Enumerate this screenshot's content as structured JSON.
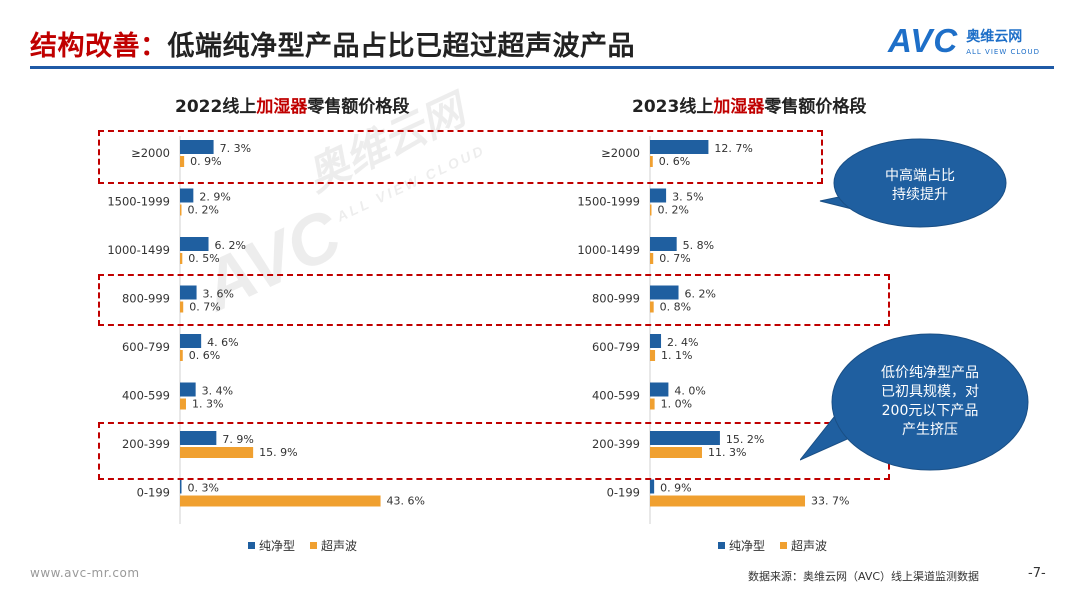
{
  "header": {
    "title_prefix": "结构改善：",
    "title_rest": "低端纯净型产品占比已超过超声波产品",
    "logo_mark": "AVC",
    "logo_cn": "奥维云网",
    "logo_en": "ALL VIEW CLOUD"
  },
  "colors": {
    "pure": "#1f5fa0",
    "ultra": "#f0a030",
    "accent": "#c00000",
    "bubble": "#1f5fa0"
  },
  "chart_data": [
    {
      "type": "bar",
      "orientation": "horizontal",
      "title_pre": "2022线上",
      "title_hl": "加湿器",
      "title_post": "零售额价格段",
      "categories": [
        "≥2000",
        "1500-1999",
        "1000-1499",
        "800-999",
        "600-799",
        "400-599",
        "200-399",
        "0-199"
      ],
      "series": [
        {
          "name": "纯净型",
          "values": [
            7.3,
            2.9,
            6.2,
            3.6,
            4.6,
            3.4,
            7.9,
            0.3
          ],
          "labels": [
            "7. 3%",
            "2. 9%",
            "6. 2%",
            "3. 6%",
            "4. 6%",
            "3. 4%",
            "7. 9%",
            "0. 3%"
          ]
        },
        {
          "name": "超声波",
          "values": [
            0.9,
            0.2,
            0.5,
            0.7,
            0.6,
            1.3,
            15.9,
            43.6
          ],
          "labels": [
            "0. 9%",
            "0. 2%",
            "0. 5%",
            "0. 7%",
            "0. 6%",
            "1. 3%",
            "15. 9%",
            "43. 6%"
          ]
        }
      ],
      "xlim": [
        0,
        50
      ],
      "legend": [
        "纯净型",
        "超声波"
      ]
    },
    {
      "type": "bar",
      "orientation": "horizontal",
      "title_pre": "2023线上",
      "title_hl": "加湿器",
      "title_post": "零售额价格段",
      "categories": [
        "≥2000",
        "1500-1999",
        "1000-1499",
        "800-999",
        "600-799",
        "400-599",
        "200-399",
        "0-199"
      ],
      "series": [
        {
          "name": "纯净型",
          "values": [
            12.7,
            3.5,
            5.8,
            6.2,
            2.4,
            4.0,
            15.2,
            0.9
          ],
          "labels": [
            "12. 7%",
            "3. 5%",
            "5. 8%",
            "6. 2%",
            "2. 4%",
            "4. 0%",
            "15. 2%",
            "0. 9%"
          ]
        },
        {
          "name": "超声波",
          "values": [
            0.6,
            0.2,
            0.7,
            0.8,
            1.1,
            1.0,
            11.3,
            33.7
          ],
          "labels": [
            "0. 6%",
            "0. 2%",
            "0. 7%",
            "0. 8%",
            "1. 1%",
            "1. 0%",
            "11. 3%",
            "33. 7%"
          ]
        }
      ],
      "xlim": [
        0,
        50
      ],
      "legend": [
        "纯净型",
        "超声波"
      ]
    }
  ],
  "callouts": [
    {
      "lines": [
        "中高端占比",
        "持续提升"
      ]
    },
    {
      "lines": [
        "低价纯净型产品",
        "已初具规模，对",
        "200元以下产品",
        "产生挤压"
      ]
    }
  ],
  "footer": {
    "website": "www.avc-mr.com",
    "source": "数据来源：奥维云网（AVC）线上渠道监测数据",
    "page": "-7-"
  },
  "watermark": {
    "mark": "AVC",
    "cn": "奥维云网",
    "en": "ALL VIEW CLOUD"
  }
}
